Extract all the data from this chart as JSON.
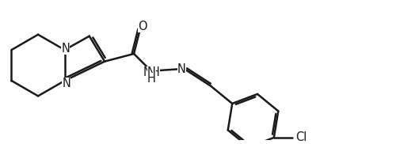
{
  "bg_color": "#ffffff",
  "line_color": "#1a1a1a",
  "line_width": 1.8,
  "font_size": 10.5,
  "figsize": [
    5.0,
    1.82
  ],
  "dpi": 100,
  "xlim": [
    0,
    5.0
  ],
  "ylim": [
    0,
    1.82
  ]
}
